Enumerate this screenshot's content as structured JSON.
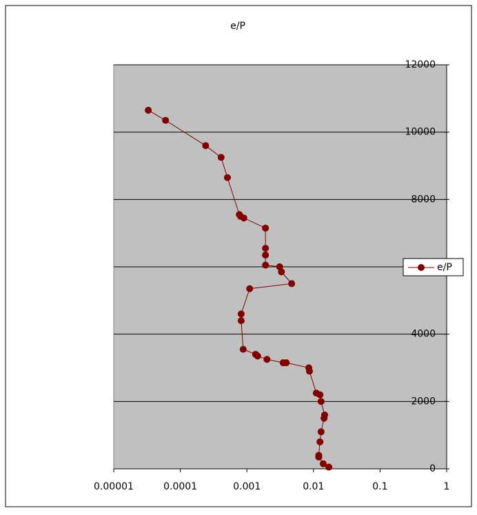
{
  "chart_data": {
    "type": "scatter",
    "title": "e/P",
    "xscale": "log",
    "grid": true,
    "legend": "right",
    "xlim": [
      1e-05,
      1
    ],
    "xticks": [
      1e-05,
      0.0001,
      0.001,
      0.01,
      0.1,
      1
    ],
    "ylim": [
      0,
      12000
    ],
    "yticks": [
      0,
      2000,
      4000,
      6000,
      8000,
      10000,
      12000
    ],
    "series": [
      {
        "name": "e/P",
        "color": "#800000",
        "x": [
          3.3e-05,
          6e-05,
          0.00024,
          0.00041,
          0.00051,
          0.00077,
          0.0008,
          0.0009,
          0.0019,
          0.0019,
          0.0019,
          0.0019,
          0.0031,
          0.0033,
          0.0047,
          0.0011,
          0.00082,
          0.00082,
          0.00088,
          0.00135,
          0.00145,
          0.002,
          0.0035,
          0.0039,
          0.0085,
          0.0087,
          0.011,
          0.0125,
          0.013,
          0.0147,
          0.0144,
          0.013,
          0.0125,
          0.012,
          0.012,
          0.014,
          0.017
        ],
        "values": [
          10650,
          10350,
          9600,
          9250,
          8650,
          7550,
          7500,
          7450,
          7150,
          6550,
          6350,
          6050,
          6000,
          5850,
          5500,
          5350,
          4600,
          4400,
          3550,
          3400,
          3350,
          3250,
          3150,
          3150,
          3000,
          2900,
          2250,
          2200,
          2000,
          1600,
          1500,
          1100,
          800,
          400,
          350,
          150,
          50
        ]
      }
    ]
  }
}
